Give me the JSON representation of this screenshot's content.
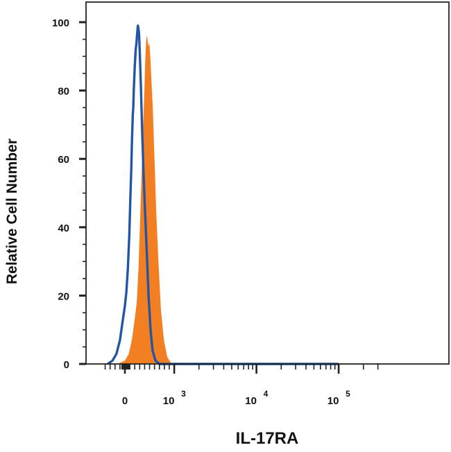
{
  "chart_data": {
    "type": "area",
    "xlabel": "IL-17RA",
    "ylabel": "Relative Cell Number",
    "ylim": [
      0,
      100
    ],
    "x_scale": "biexponential",
    "y_ticks": [
      "0",
      "20",
      "40",
      "60",
      "80",
      "100"
    ],
    "x_ticks": [
      {
        "base": "0",
        "exp": ""
      },
      {
        "base": "10",
        "exp": "3"
      },
      {
        "base": "10",
        "exp": "4"
      },
      {
        "base": "10",
        "exp": "5"
      }
    ],
    "grid": false,
    "legend": "none",
    "series": [
      {
        "role": "isotype-control",
        "style": "outline",
        "color": "#2255a4",
        "points": [
          [
            -350,
            0
          ],
          [
            -250,
            1
          ],
          [
            -170,
            3
          ],
          [
            -100,
            7
          ],
          [
            -50,
            12
          ],
          [
            0,
            17
          ],
          [
            30,
            21
          ],
          [
            60,
            28
          ],
          [
            90,
            38
          ],
          [
            110,
            48
          ],
          [
            130,
            57
          ],
          [
            145,
            66
          ],
          [
            160,
            73
          ],
          [
            170,
            75
          ],
          [
            180,
            80
          ],
          [
            200,
            87
          ],
          [
            220,
            92
          ],
          [
            235,
            94
          ],
          [
            250,
            97
          ],
          [
            265,
            99
          ],
          [
            285,
            97
          ],
          [
            300,
            92
          ],
          [
            325,
            81
          ],
          [
            350,
            68
          ],
          [
            380,
            55
          ],
          [
            410,
            44
          ],
          [
            440,
            34
          ],
          [
            480,
            20
          ],
          [
            520,
            10
          ],
          [
            560,
            4
          ],
          [
            620,
            1
          ],
          [
            700,
            0
          ],
          [
            100000,
            0
          ]
        ]
      },
      {
        "role": "IL-17RA",
        "style": "filled",
        "color": "#f27f22",
        "points": [
          [
            -150,
            0
          ],
          [
            0,
            1
          ],
          [
            80,
            3
          ],
          [
            140,
            7
          ],
          [
            190,
            12
          ],
          [
            240,
            18
          ],
          [
            275,
            28
          ],
          [
            300,
            38
          ],
          [
            320,
            48
          ],
          [
            345,
            58
          ],
          [
            365,
            68
          ],
          [
            380,
            74
          ],
          [
            395,
            80
          ],
          [
            410,
            88
          ],
          [
            425,
            93
          ],
          [
            440,
            96
          ],
          [
            460,
            95
          ],
          [
            475,
            93
          ],
          [
            495,
            94
          ],
          [
            515,
            90
          ],
          [
            535,
            84
          ],
          [
            565,
            75
          ],
          [
            600,
            60
          ],
          [
            635,
            45
          ],
          [
            680,
            30
          ],
          [
            730,
            16
          ],
          [
            790,
            7
          ],
          [
            860,
            2
          ],
          [
            950,
            0
          ],
          [
            100000,
            0
          ]
        ]
      }
    ]
  }
}
